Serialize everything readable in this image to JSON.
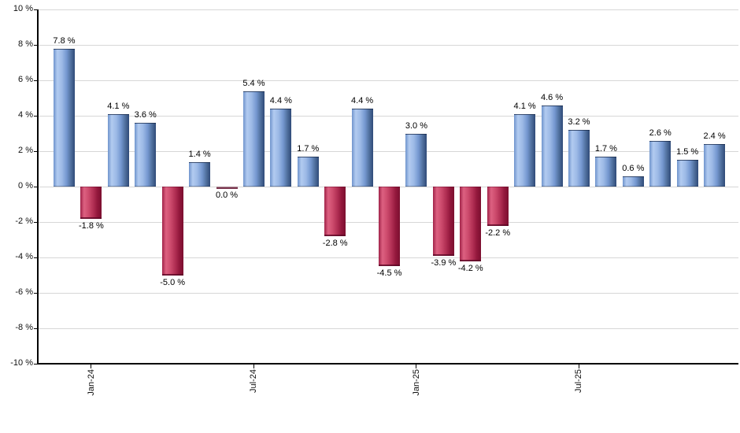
{
  "chart_data": {
    "type": "bar",
    "title": "",
    "xlabel": "",
    "ylabel": "",
    "unit": "%",
    "ylim": [
      -10,
      10
    ],
    "grid": true,
    "y_ticks": [
      {
        "value": 10,
        "label": "10 %"
      },
      {
        "value": 8,
        "label": "8 %"
      },
      {
        "value": 6,
        "label": "6 %"
      },
      {
        "value": 4,
        "label": "4 %"
      },
      {
        "value": 2,
        "label": "2 %"
      },
      {
        "value": 0,
        "label": "0 %"
      },
      {
        "value": -2,
        "label": "-2 %"
      },
      {
        "value": -4,
        "label": "-4 %"
      },
      {
        "value": -6,
        "label": "-6 %"
      },
      {
        "value": -8,
        "label": "-8 %"
      },
      {
        "value": -10,
        "label": "-10 %"
      }
    ],
    "x_ticks": [
      {
        "bar_index": 1,
        "label": "Jan-24"
      },
      {
        "bar_index": 7,
        "label": "Jul-24"
      },
      {
        "bar_index": 13,
        "label": "Jan-25"
      },
      {
        "bar_index": 19,
        "label": "Jul-25"
      }
    ],
    "bars": [
      {
        "value": 7.8,
        "label": "7.8 %"
      },
      {
        "value": -1.8,
        "label": "-1.8 %"
      },
      {
        "value": 4.1,
        "label": "4.1 %"
      },
      {
        "value": 3.6,
        "label": "3.6 %"
      },
      {
        "value": -5.0,
        "label": "-5.0 %"
      },
      {
        "value": 1.4,
        "label": "1.4 %"
      },
      {
        "value": 0.0,
        "label": "0.0 %"
      },
      {
        "value": 5.4,
        "label": "5.4 %"
      },
      {
        "value": 4.4,
        "label": "4.4 %"
      },
      {
        "value": 1.7,
        "label": "1.7 %"
      },
      {
        "value": -2.8,
        "label": "-2.8 %"
      },
      {
        "value": 4.4,
        "label": "4.4 %"
      },
      {
        "value": -4.5,
        "label": "-4.5 %"
      },
      {
        "value": 3.0,
        "label": "3.0 %"
      },
      {
        "value": -3.9,
        "label": "-3.9 %"
      },
      {
        "value": -4.2,
        "label": "-4.2 %"
      },
      {
        "value": -2.2,
        "label": "-2.2 %"
      },
      {
        "value": 4.1,
        "label": "4.1 %"
      },
      {
        "value": 4.6,
        "label": "4.6 %"
      },
      {
        "value": 3.2,
        "label": "3.2 %"
      },
      {
        "value": 1.7,
        "label": "1.7 %"
      },
      {
        "value": 0.6,
        "label": "0.6 %"
      },
      {
        "value": 2.6,
        "label": "2.6 %"
      },
      {
        "value": 1.5,
        "label": "1.5 %"
      },
      {
        "value": 2.4,
        "label": "2.4 %"
      }
    ],
    "colors": {
      "positive_gradient": [
        "#6f94cd",
        "#b2cbf0",
        "#9cb9e6",
        "#7497cf",
        "#51719f",
        "#2f4a78"
      ],
      "negative_gradient": [
        "#a02248",
        "#dd6181",
        "#cc4a6c",
        "#b02e53",
        "#92173b",
        "#7c0f30"
      ],
      "grid": "#d7d7d7",
      "axis": "#000000",
      "text": "#111111",
      "background": "#ffffff"
    }
  }
}
